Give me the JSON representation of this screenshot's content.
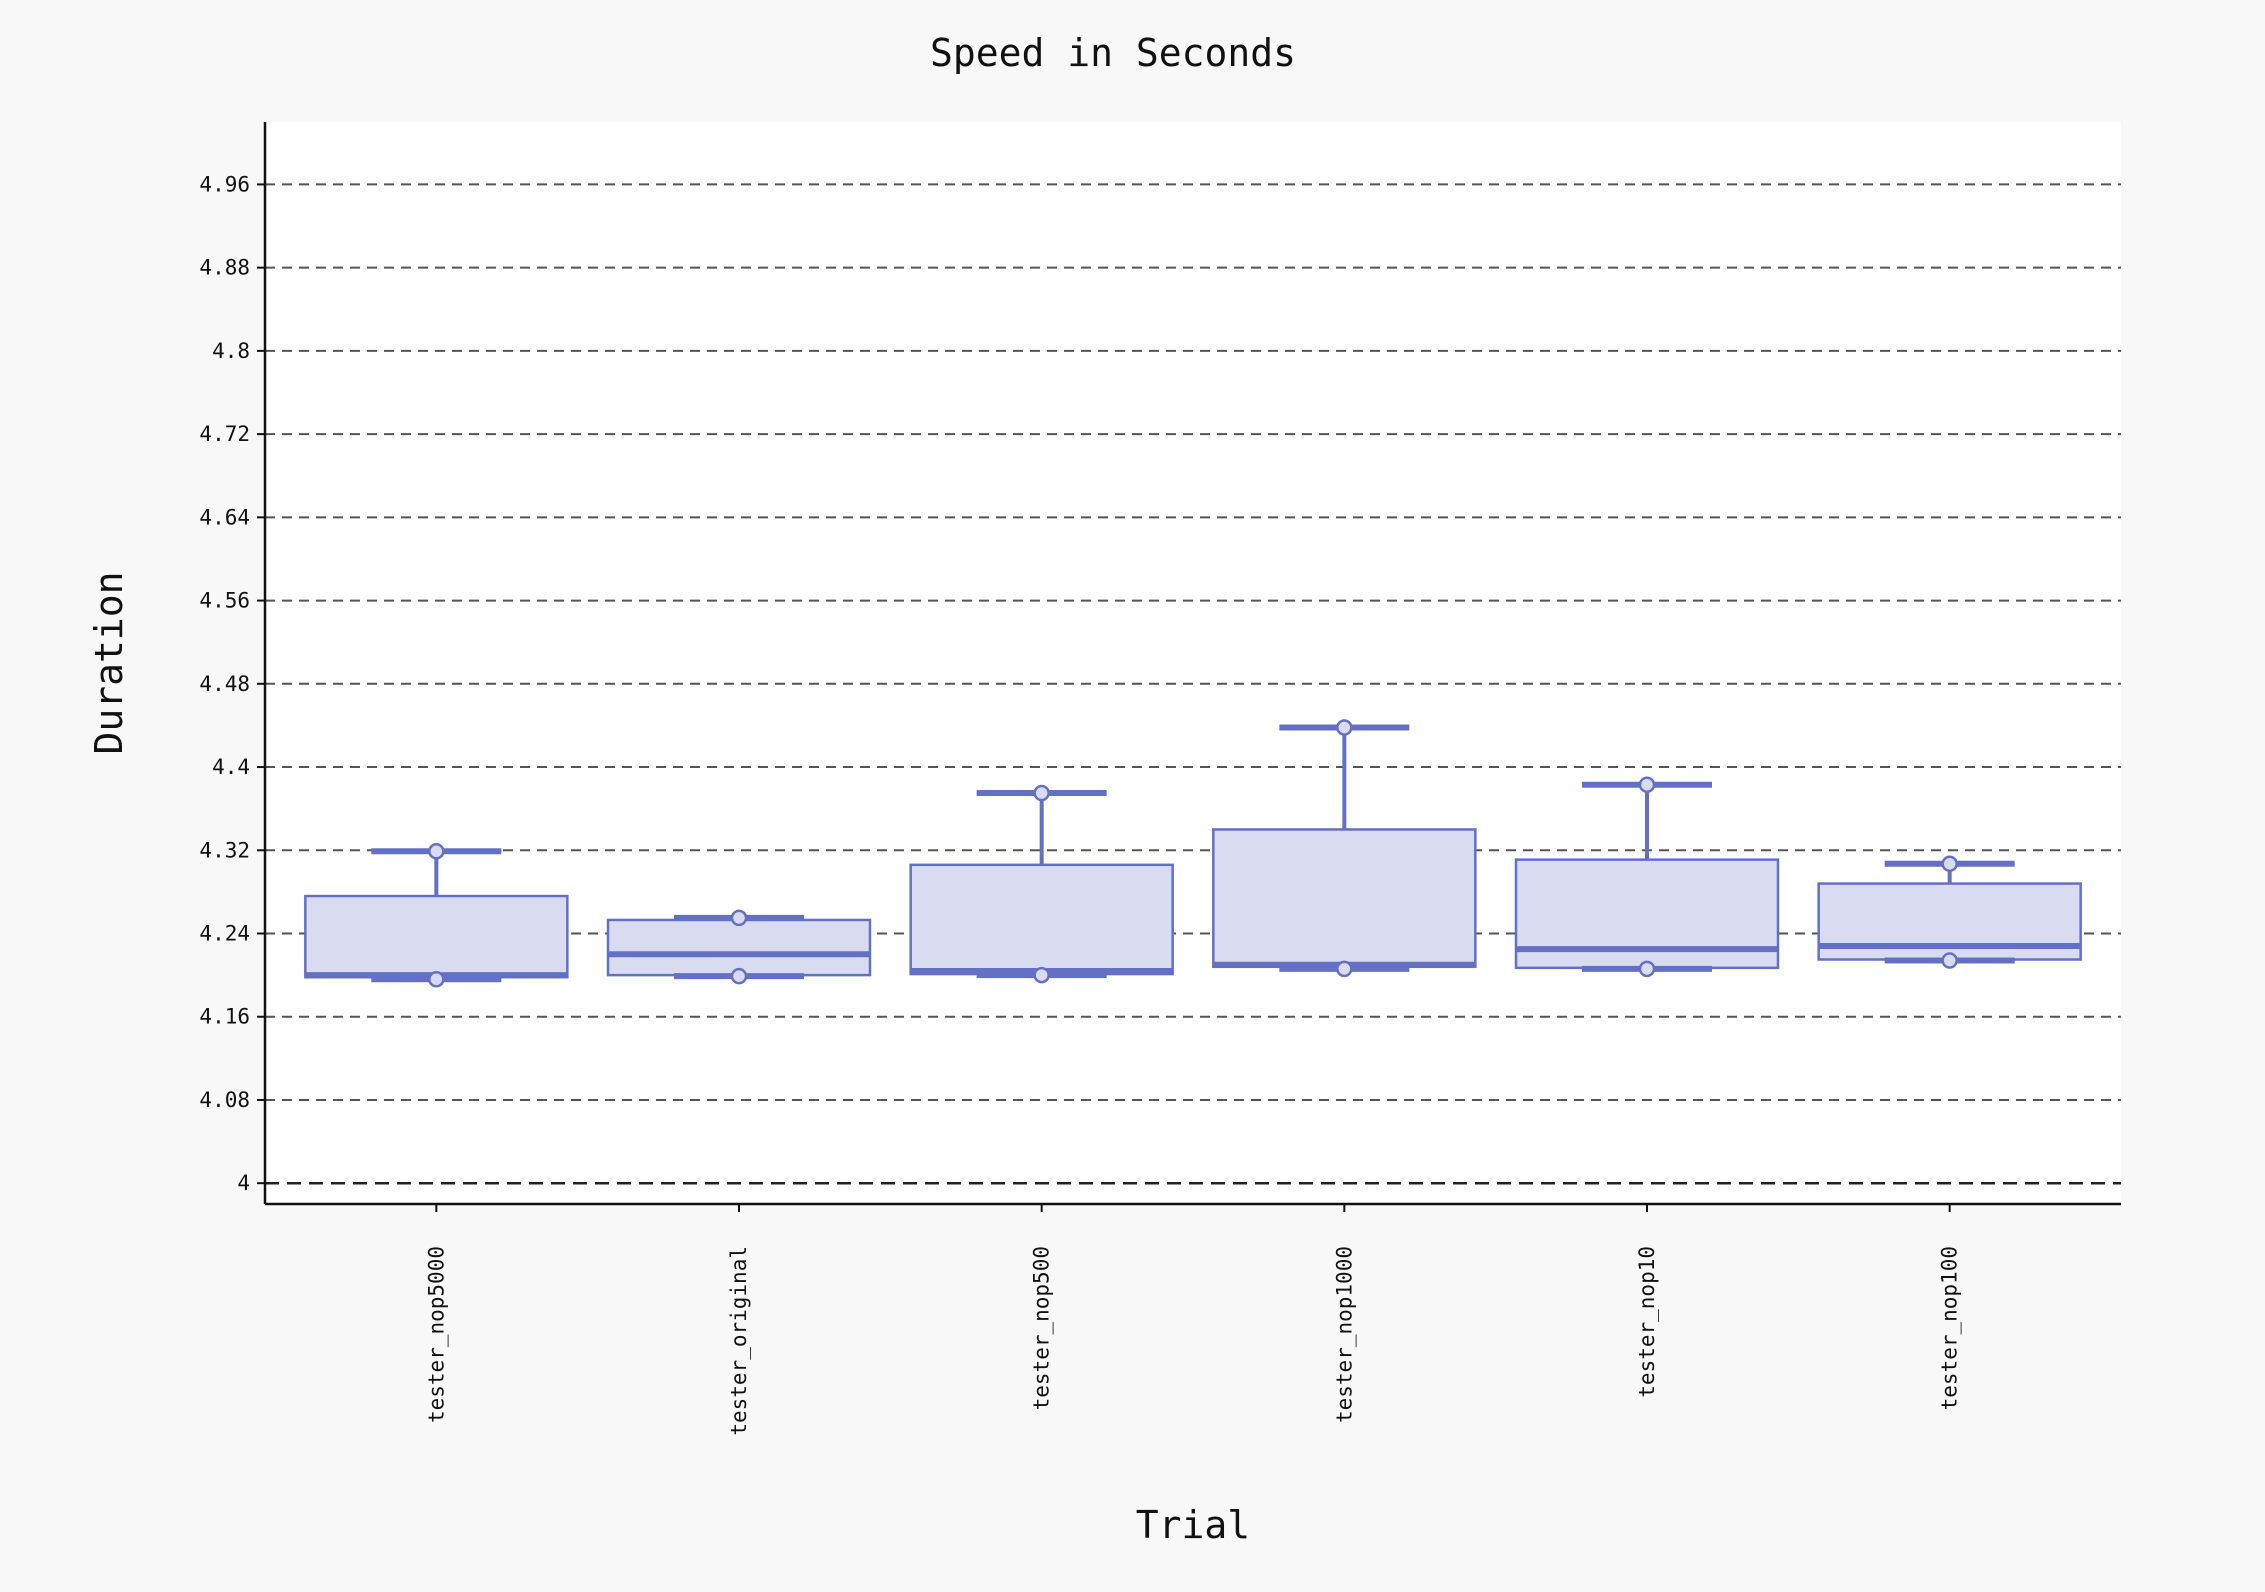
{
  "chart_data": {
    "type": "box",
    "title": "Speed in Seconds",
    "xlabel": "Trial",
    "ylabel": "Duration",
    "ylim": [
      3.98,
      5.02
    ],
    "yticks": [
      4,
      4.08,
      4.16,
      4.24,
      4.32,
      4.4,
      4.48,
      4.56,
      4.64,
      4.72,
      4.8,
      4.88,
      4.96
    ],
    "grid": true,
    "categories": [
      "tester_nop5000",
      "tester_original",
      "tester_nop500",
      "tester_nop1000",
      "tester_nop10",
      "tester_nop100"
    ],
    "boxes": [
      {
        "name": "tester_nop5000",
        "min": 4.196,
        "q1": 4.198,
        "median": 4.2,
        "q3": 4.276,
        "max": 4.319
      },
      {
        "name": "tester_original",
        "min": 4.199,
        "q1": 4.2,
        "median": 4.22,
        "q3": 4.253,
        "max": 4.255
      },
      {
        "name": "tester_nop500",
        "min": 4.2,
        "q1": 4.201,
        "median": 4.204,
        "q3": 4.306,
        "max": 4.375
      },
      {
        "name": "tester_nop1000",
        "min": 4.206,
        "q1": 4.208,
        "median": 4.21,
        "q3": 4.34,
        "max": 4.438
      },
      {
        "name": "tester_nop10",
        "min": 4.206,
        "q1": 4.207,
        "median": 4.225,
        "q3": 4.311,
        "max": 4.383
      },
      {
        "name": "tester_nop100",
        "min": 4.214,
        "q1": 4.215,
        "median": 4.228,
        "q3": 4.288,
        "max": 4.307
      }
    ],
    "colors": {
      "box_fill": "#d9dbf0",
      "box_stroke": "#6470c4",
      "grid": "#555555",
      "plot_bg": "#ffffff",
      "page_bg": "#f8f8f8"
    }
  }
}
